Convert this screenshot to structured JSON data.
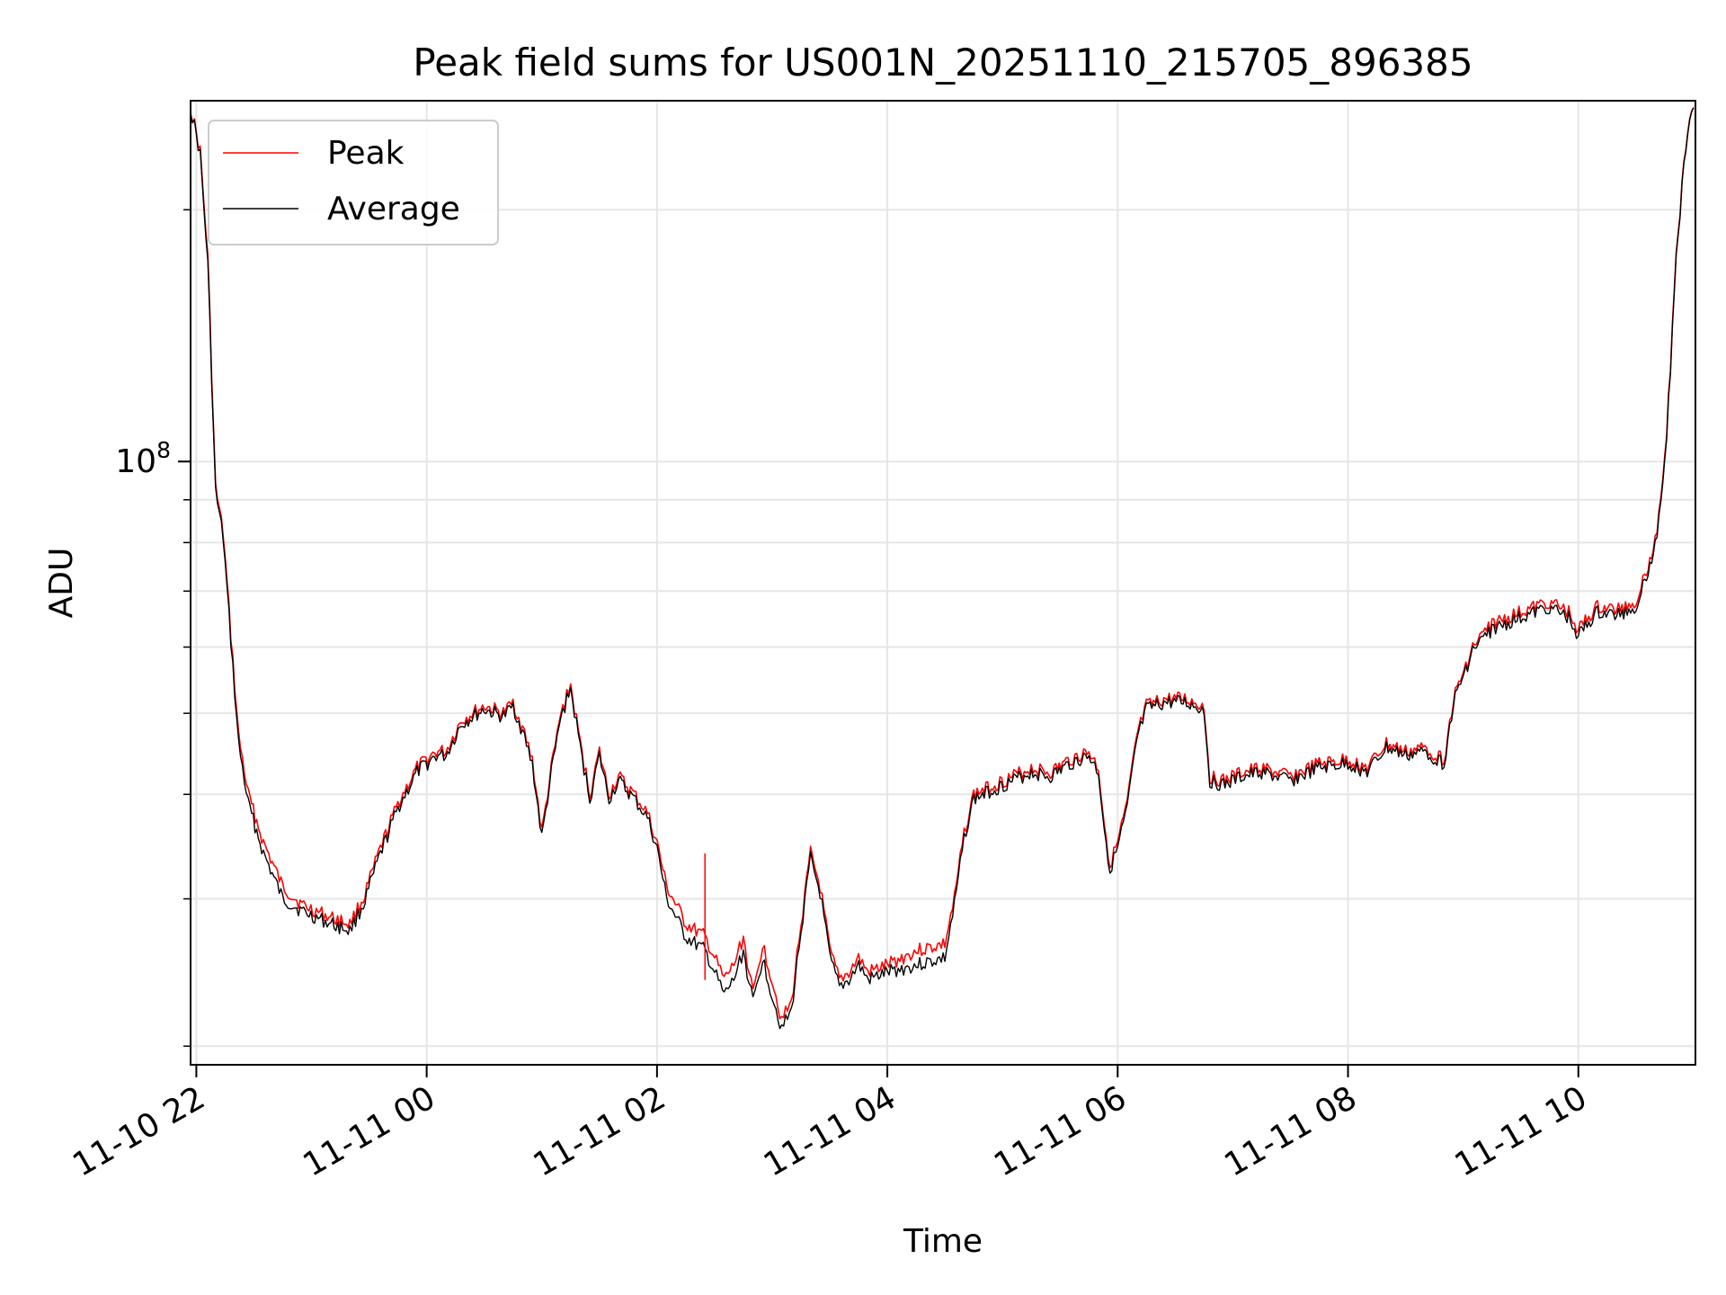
{
  "chart_data": {
    "type": "line",
    "title": "Peak field sums for US001N_20251110_215705_896385",
    "xlabel": "Time",
    "ylabel": "ADU",
    "y_scale": "log",
    "ylim": [
      19000000,
      270000000
    ],
    "xlim": [
      "2025-11-10 21:57",
      "2025-11-11 11:01"
    ],
    "grid": true,
    "legend_position": "top-left",
    "x_ticks": [
      {
        "t": "2025-11-10 22:00",
        "label": "11-10 22"
      },
      {
        "t": "2025-11-11 00:00",
        "label": "11-11 00"
      },
      {
        "t": "2025-11-11 02:00",
        "label": "11-11 02"
      },
      {
        "t": "2025-11-11 04:00",
        "label": "11-11 04"
      },
      {
        "t": "2025-11-11 06:00",
        "label": "11-11 06"
      },
      {
        "t": "2025-11-11 08:00",
        "label": "11-11 08"
      },
      {
        "t": "2025-11-11 10:00",
        "label": "11-11 10"
      }
    ],
    "y_major_ticks": [
      {
        "value": 100000000,
        "label_base": "10",
        "label_exp": "8"
      }
    ],
    "y_minor_ticks": [
      20000000,
      30000000,
      40000000,
      50000000,
      60000000,
      70000000,
      80000000,
      90000000,
      200000000
    ],
    "series": [
      {
        "name": "Peak",
        "color": "#ff0000",
        "points": [
          [
            "2025-11-10 21:57",
            265000000
          ],
          [
            "2025-11-10 22:02",
            235000000
          ],
          [
            "2025-11-10 22:06",
            175000000
          ],
          [
            "2025-11-10 22:10",
            93000000
          ],
          [
            "2025-11-10 22:14",
            82000000
          ],
          [
            "2025-11-10 22:18",
            62000000
          ],
          [
            "2025-11-10 22:22",
            47000000
          ],
          [
            "2025-11-10 22:27",
            40000000
          ],
          [
            "2025-11-10 22:35",
            35000000
          ],
          [
            "2025-11-10 22:45",
            31000000
          ],
          [
            "2025-11-10 22:55",
            29500000
          ],
          [
            "2025-11-10 23:10",
            28500000
          ],
          [
            "2025-11-10 23:20",
            28000000
          ],
          [
            "2025-11-10 23:27",
            30000000
          ],
          [
            "2025-11-10 23:35",
            34000000
          ],
          [
            "2025-11-10 23:45",
            39000000
          ],
          [
            "2025-11-10 23:55",
            43000000
          ],
          [
            "2025-11-11 00:05",
            45000000
          ],
          [
            "2025-11-11 00:10",
            45000000
          ],
          [
            "2025-11-11 00:18",
            49000000
          ],
          [
            "2025-11-11 00:30",
            51000000
          ],
          [
            "2025-11-11 00:40",
            50000000
          ],
          [
            "2025-11-11 00:45",
            51500000
          ],
          [
            "2025-11-11 00:50",
            48000000
          ],
          [
            "2025-11-11 00:55",
            44000000
          ],
          [
            "2025-11-11 01:00",
            36000000
          ],
          [
            "2025-11-11 01:05",
            43000000
          ],
          [
            "2025-11-11 01:10",
            50000000
          ],
          [
            "2025-11-11 01:15",
            54000000
          ],
          [
            "2025-11-11 01:20",
            46000000
          ],
          [
            "2025-11-11 01:25",
            40000000
          ],
          [
            "2025-11-11 01:30",
            45000000
          ],
          [
            "2025-11-11 01:35",
            40000000
          ],
          [
            "2025-11-11 01:40",
            42000000
          ],
          [
            "2025-11-11 01:48",
            40000000
          ],
          [
            "2025-11-11 01:55",
            38000000
          ],
          [
            "2025-11-11 02:00",
            35000000
          ],
          [
            "2025-11-11 02:05",
            31000000
          ],
          [
            "2025-11-11 02:15",
            28000000
          ],
          [
            "2025-11-11 02:25",
            27000000
          ],
          [
            "2025-11-11 02:30",
            25500000
          ],
          [
            "2025-11-11 02:35",
            24000000
          ],
          [
            "2025-11-11 02:40",
            25000000
          ],
          [
            "2025-11-11 02:45",
            27000000
          ],
          [
            "2025-11-11 02:50",
            23000000
          ],
          [
            "2025-11-11 02:55",
            26500000
          ],
          [
            "2025-11-11 03:00",
            24000000
          ],
          [
            "2025-11-11 03:05",
            21500000
          ],
          [
            "2025-11-11 03:10",
            22500000
          ],
          [
            "2025-11-11 03:15",
            28000000
          ],
          [
            "2025-11-11 03:20",
            34000000
          ],
          [
            "2025-11-11 03:25",
            31000000
          ],
          [
            "2025-11-11 03:30",
            26000000
          ],
          [
            "2025-11-11 03:35",
            24000000
          ],
          [
            "2025-11-11 03:40",
            24500000
          ],
          [
            "2025-11-11 03:45",
            25500000
          ],
          [
            "2025-11-11 03:50",
            24500000
          ],
          [
            "2025-11-11 04:00",
            25000000
          ],
          [
            "2025-11-11 04:15",
            26000000
          ],
          [
            "2025-11-11 04:30",
            26500000
          ],
          [
            "2025-11-11 04:35",
            30000000
          ],
          [
            "2025-11-11 04:40",
            36000000
          ],
          [
            "2025-11-11 04:45",
            40000000
          ],
          [
            "2025-11-11 04:55",
            41000000
          ],
          [
            "2025-11-11 05:05",
            42000000
          ],
          [
            "2025-11-11 05:15",
            43000000
          ],
          [
            "2025-11-11 05:25",
            42500000
          ],
          [
            "2025-11-11 05:35",
            44000000
          ],
          [
            "2025-11-11 05:45",
            45000000
          ],
          [
            "2025-11-11 05:50",
            43000000
          ],
          [
            "2025-11-11 05:53",
            37000000
          ],
          [
            "2025-11-11 05:56",
            33000000
          ],
          [
            "2025-11-11 06:00",
            35000000
          ],
          [
            "2025-11-11 06:05",
            39000000
          ],
          [
            "2025-11-11 06:10",
            47000000
          ],
          [
            "2025-11-11 06:15",
            51000000
          ],
          [
            "2025-11-11 06:25",
            52000000
          ],
          [
            "2025-11-11 06:35",
            52000000
          ],
          [
            "2025-11-11 06:45",
            51000000
          ],
          [
            "2025-11-11 06:48",
            42000000
          ],
          [
            "2025-11-11 06:55",
            41500000
          ],
          [
            "2025-11-11 07:05",
            42500000
          ],
          [
            "2025-11-11 07:15",
            43000000
          ],
          [
            "2025-11-11 07:30",
            42000000
          ],
          [
            "2025-11-11 07:45",
            43500000
          ],
          [
            "2025-11-11 08:00",
            44000000
          ],
          [
            "2025-11-11 08:10",
            43000000
          ],
          [
            "2025-11-11 08:20",
            46000000
          ],
          [
            "2025-11-11 08:30",
            45000000
          ],
          [
            "2025-11-11 08:40",
            45500000
          ],
          [
            "2025-11-11 08:50",
            44000000
          ],
          [
            "2025-11-11 08:55",
            52000000
          ],
          [
            "2025-11-11 09:05",
            60000000
          ],
          [
            "2025-11-11 09:15",
            64000000
          ],
          [
            "2025-11-11 09:30",
            66000000
          ],
          [
            "2025-11-11 09:45",
            68000000
          ],
          [
            "2025-11-11 09:55",
            66000000
          ],
          [
            "2025-11-11 10:00",
            63000000
          ],
          [
            "2025-11-11 10:10",
            67000000
          ],
          [
            "2025-11-11 10:20",
            66500000
          ],
          [
            "2025-11-11 10:30",
            68000000
          ],
          [
            "2025-11-11 10:40",
            80000000
          ],
          [
            "2025-11-11 10:45",
            100000000
          ],
          [
            "2025-11-11 10:48",
            130000000
          ],
          [
            "2025-11-11 10:51",
            175000000
          ],
          [
            "2025-11-11 10:55",
            230000000
          ],
          [
            "2025-11-11 10:58",
            262000000
          ],
          [
            "2025-11-11 11:00",
            265000000
          ]
        ]
      },
      {
        "name": "Average",
        "color": "#000000",
        "points": [
          [
            "2025-11-10 21:57",
            265000000
          ],
          [
            "2025-11-10 22:02",
            233000000
          ],
          [
            "2025-11-10 22:06",
            172000000
          ],
          [
            "2025-11-10 22:10",
            92000000
          ],
          [
            "2025-11-10 22:14",
            81000000
          ],
          [
            "2025-11-10 22:18",
            61000000
          ],
          [
            "2025-11-10 22:22",
            46000000
          ],
          [
            "2025-11-10 22:27",
            39000000
          ],
          [
            "2025-11-10 22:35",
            34000000
          ],
          [
            "2025-11-10 22:45",
            30000000
          ],
          [
            "2025-11-10 22:55",
            29000000
          ],
          [
            "2025-11-10 23:10",
            28000000
          ],
          [
            "2025-11-10 23:20",
            27500000
          ],
          [
            "2025-11-10 23:27",
            29500000
          ],
          [
            "2025-11-10 23:35",
            33500000
          ],
          [
            "2025-11-10 23:45",
            38500000
          ],
          [
            "2025-11-10 23:55",
            42500000
          ],
          [
            "2025-11-11 00:05",
            44500000
          ],
          [
            "2025-11-11 00:10",
            44500000
          ],
          [
            "2025-11-11 00:18",
            48500000
          ],
          [
            "2025-11-11 00:30",
            50500000
          ],
          [
            "2025-11-11 00:40",
            49500000
          ],
          [
            "2025-11-11 00:45",
            51000000
          ],
          [
            "2025-11-11 00:50",
            47500000
          ],
          [
            "2025-11-11 00:55",
            43500000
          ],
          [
            "2025-11-11 01:00",
            35500000
          ],
          [
            "2025-11-11 01:05",
            42500000
          ],
          [
            "2025-11-11 01:10",
            49500000
          ],
          [
            "2025-11-11 01:15",
            53500000
          ],
          [
            "2025-11-11 01:20",
            45500000
          ],
          [
            "2025-11-11 01:25",
            39500000
          ],
          [
            "2025-11-11 01:30",
            44500000
          ],
          [
            "2025-11-11 01:35",
            39500000
          ],
          [
            "2025-11-11 01:40",
            41500000
          ],
          [
            "2025-11-11 01:48",
            39500000
          ],
          [
            "2025-11-11 01:55",
            37500000
          ],
          [
            "2025-11-11 02:00",
            34500000
          ],
          [
            "2025-11-11 02:05",
            30000000
          ],
          [
            "2025-11-11 02:15",
            27000000
          ],
          [
            "2025-11-11 02:25",
            26000000
          ],
          [
            "2025-11-11 02:30",
            24500000
          ],
          [
            "2025-11-11 02:35",
            23000000
          ],
          [
            "2025-11-11 02:40",
            24000000
          ],
          [
            "2025-11-11 02:45",
            26000000
          ],
          [
            "2025-11-11 02:50",
            22500000
          ],
          [
            "2025-11-11 02:55",
            25500000
          ],
          [
            "2025-11-11 03:00",
            23000000
          ],
          [
            "2025-11-11 03:05",
            21000000
          ],
          [
            "2025-11-11 03:10",
            22000000
          ],
          [
            "2025-11-11 03:15",
            27500000
          ],
          [
            "2025-11-11 03:20",
            33500000
          ],
          [
            "2025-11-11 03:25",
            30500000
          ],
          [
            "2025-11-11 03:30",
            25500000
          ],
          [
            "2025-11-11 03:35",
            23500000
          ],
          [
            "2025-11-11 03:40",
            24000000
          ],
          [
            "2025-11-11 03:45",
            25000000
          ],
          [
            "2025-11-11 03:50",
            24000000
          ],
          [
            "2025-11-11 04:00",
            24500000
          ],
          [
            "2025-11-11 04:15",
            25000000
          ],
          [
            "2025-11-11 04:30",
            25500000
          ],
          [
            "2025-11-11 04:35",
            29500000
          ],
          [
            "2025-11-11 04:40",
            35500000
          ],
          [
            "2025-11-11 04:45",
            39500000
          ],
          [
            "2025-11-11 04:55",
            40500000
          ],
          [
            "2025-11-11 05:05",
            41500000
          ],
          [
            "2025-11-11 05:15",
            42500000
          ],
          [
            "2025-11-11 05:25",
            42000000
          ],
          [
            "2025-11-11 05:35",
            43500000
          ],
          [
            "2025-11-11 05:45",
            44500000
          ],
          [
            "2025-11-11 05:50",
            42500000
          ],
          [
            "2025-11-11 05:53",
            36500000
          ],
          [
            "2025-11-11 05:56",
            32500000
          ],
          [
            "2025-11-11 06:00",
            34500000
          ],
          [
            "2025-11-11 06:05",
            38500000
          ],
          [
            "2025-11-11 06:10",
            46500000
          ],
          [
            "2025-11-11 06:15",
            50500000
          ],
          [
            "2025-11-11 06:25",
            51500000
          ],
          [
            "2025-11-11 06:35",
            51500000
          ],
          [
            "2025-11-11 06:45",
            50500000
          ],
          [
            "2025-11-11 06:48",
            41500000
          ],
          [
            "2025-11-11 06:55",
            41000000
          ],
          [
            "2025-11-11 07:05",
            42000000
          ],
          [
            "2025-11-11 07:15",
            42500000
          ],
          [
            "2025-11-11 07:30",
            41500000
          ],
          [
            "2025-11-11 07:45",
            43000000
          ],
          [
            "2025-11-11 08:00",
            43500000
          ],
          [
            "2025-11-11 08:10",
            42500000
          ],
          [
            "2025-11-11 08:20",
            45500000
          ],
          [
            "2025-11-11 08:30",
            44500000
          ],
          [
            "2025-11-11 08:40",
            45000000
          ],
          [
            "2025-11-11 08:50",
            43500000
          ],
          [
            "2025-11-11 08:55",
            51500000
          ],
          [
            "2025-11-11 09:05",
            59500000
          ],
          [
            "2025-11-11 09:15",
            63000000
          ],
          [
            "2025-11-11 09:30",
            65000000
          ],
          [
            "2025-11-11 09:45",
            67000000
          ],
          [
            "2025-11-11 09:55",
            65000000
          ],
          [
            "2025-11-11 10:00",
            62000000
          ],
          [
            "2025-11-11 10:10",
            66000000
          ],
          [
            "2025-11-11 10:20",
            65500000
          ],
          [
            "2025-11-11 10:30",
            67000000
          ],
          [
            "2025-11-11 10:40",
            79000000
          ],
          [
            "2025-11-11 10:45",
            99000000
          ],
          [
            "2025-11-11 10:48",
            129000000
          ],
          [
            "2025-11-11 10:51",
            174000000
          ],
          [
            "2025-11-11 10:55",
            229000000
          ],
          [
            "2025-11-11 10:58",
            261000000
          ],
          [
            "2025-11-11 11:00",
            265000000
          ]
        ]
      }
    ],
    "annotations": [
      {
        "t": "2025-11-11 02:25",
        "value": 34000000,
        "series": "Peak",
        "note_type": "spike"
      }
    ]
  }
}
